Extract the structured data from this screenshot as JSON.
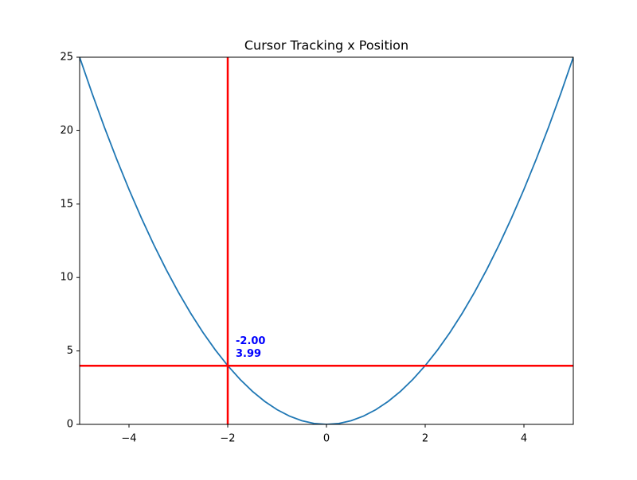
{
  "chart_data": {
    "type": "line",
    "title": "Cursor Tracking x Position",
    "x": [
      -5,
      -4.75,
      -4.5,
      -4.25,
      -4,
      -3.75,
      -3.5,
      -3.25,
      -3,
      -2.75,
      -2.5,
      -2.25,
      -2,
      -1.75,
      -1.5,
      -1.25,
      -1,
      -0.75,
      -0.5,
      -0.25,
      0,
      0.25,
      0.5,
      0.75,
      1,
      1.25,
      1.5,
      1.75,
      2,
      2.25,
      2.5,
      2.75,
      3,
      3.25,
      3.5,
      3.75,
      4,
      4.25,
      4.5,
      4.75,
      5
    ],
    "series": [
      {
        "color": "#1f77b4",
        "values": [
          25,
          22.5625,
          20.25,
          18.0625,
          16,
          14.0625,
          12.25,
          10.5625,
          9,
          7.5625,
          6.25,
          5.0625,
          4,
          3.0625,
          2.25,
          1.5625,
          1,
          0.5625,
          0.25,
          0.0625,
          0,
          0.0625,
          0.25,
          0.5625,
          1,
          1.5625,
          2.25,
          3.0625,
          4,
          5.0625,
          6.25,
          7.5625,
          9,
          10.5625,
          12.25,
          14.0625,
          16,
          18.0625,
          20.25,
          22.5625,
          25
        ]
      }
    ],
    "xlim": [
      -5,
      5
    ],
    "xticks": [
      {
        "value": -4,
        "label": "−4"
      },
      {
        "value": -2,
        "label": "−2"
      },
      0,
      2,
      4
    ],
    "ylim": [
      0,
      25
    ],
    "yticks": [
      0,
      5,
      10,
      15,
      20,
      25
    ],
    "cursor": {
      "x": -2,
      "y": 3.99,
      "x_label": "-2.00",
      "y_label": "3.99",
      "line_color": "#ff0000",
      "label_color": "#0000ff"
    }
  }
}
